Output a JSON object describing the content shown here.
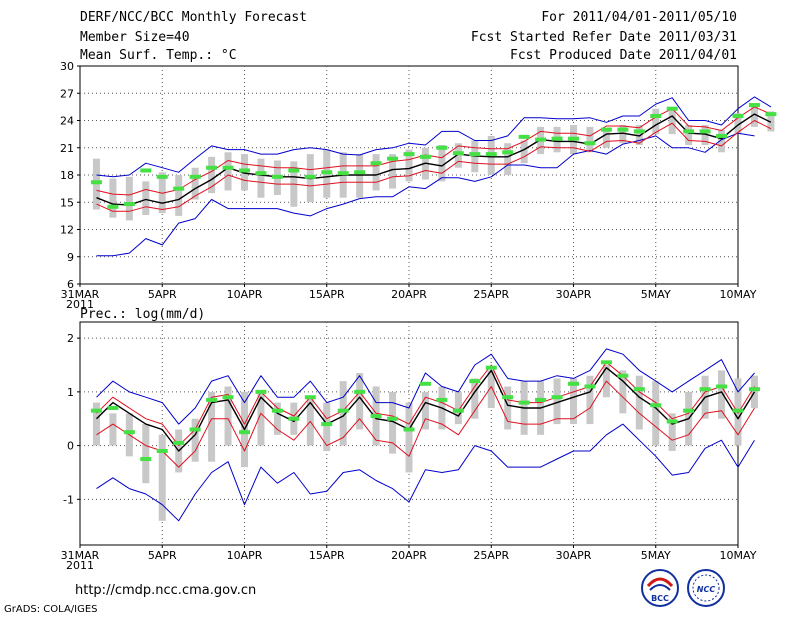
{
  "header": {
    "title": "DERF/NCC/BCC Monthly Forecast",
    "member_size": "Member Size=40",
    "variable": "Mean Surf. Temp.: °C",
    "period": "For 2011/04/01-2011/05/10",
    "fcst_started": "Fcst Started Refer Date 2011/03/31",
    "fcst_produced": "Fcst Produced Date 2011/04/01"
  },
  "footer": {
    "url": "http://cmdp.ncc.cma.gov.cn",
    "grads": "GrADS: COLA/IGES",
    "logo_left_label": "BCC",
    "logo_right_label": "NCC"
  },
  "colors": {
    "bar": "#c8c8c8",
    "mean": "#000000",
    "inner_envelope": "#e01020",
    "outer_envelope": "#0000cc",
    "observed_marker": "#44e044"
  },
  "chart_data": [
    {
      "type": "line",
      "name": "temperature",
      "title": "Mean Surf. Temp.: °C",
      "x_start": "2011-03-31",
      "n_days": 41,
      "xlabel_ticks": [
        {
          "day": 0,
          "label": "31MAR"
        },
        {
          "day": 5,
          "label": "5APR"
        },
        {
          "day": 10,
          "label": "10APR"
        },
        {
          "day": 15,
          "label": "15APR"
        },
        {
          "day": 20,
          "label": "20APR"
        },
        {
          "day": 25,
          "label": "25APR"
        },
        {
          "day": 30,
          "label": "30APR"
        },
        {
          "day": 35,
          "label": "5MAY"
        },
        {
          "day": 40,
          "label": "10MAY"
        }
      ],
      "year_label": "2011",
      "ylim": [
        6,
        30
      ],
      "yticks": [
        6,
        9,
        12,
        15,
        18,
        21,
        24,
        27,
        30
      ],
      "grid": true,
      "series": [
        {
          "name": "mean",
          "start_day": 1,
          "values": [
            15.5,
            14.8,
            14.7,
            15.3,
            14.9,
            15.3,
            16.5,
            17.5,
            18.8,
            18.2,
            18.0,
            17.8,
            17.8,
            17.6,
            17.8,
            18.0,
            18.0,
            18.0,
            18.6,
            18.7,
            19.3,
            19.0,
            20.3,
            20.1,
            20.0,
            20.0,
            20.8,
            21.9,
            21.7,
            21.7,
            21.4,
            22.5,
            22.6,
            22.3,
            23.5,
            24.5,
            22.6,
            22.5,
            22.0,
            23.5,
            24.7,
            23.8
          ]
        },
        {
          "name": "upper",
          "start_day": 1,
          "values": [
            16.3,
            15.9,
            15.8,
            16.4,
            16.0,
            16.4,
            17.5,
            18.4,
            19.6,
            19.2,
            19.0,
            18.8,
            18.8,
            18.6,
            18.8,
            19.0,
            19.0,
            19.0,
            19.5,
            19.7,
            20.2,
            19.9,
            21.2,
            21.0,
            20.9,
            20.9,
            21.7,
            22.8,
            22.6,
            22.6,
            22.3,
            23.4,
            23.4,
            23.2,
            24.4,
            25.3,
            23.4,
            23.3,
            22.9,
            24.3,
            25.5,
            24.7
          ]
        },
        {
          "name": "lower",
          "start_day": 1,
          "values": [
            14.8,
            14.0,
            14.0,
            14.5,
            14.2,
            14.5,
            15.7,
            16.7,
            18.0,
            17.4,
            17.2,
            17.0,
            17.0,
            16.8,
            17.0,
            17.2,
            17.2,
            17.2,
            17.8,
            17.9,
            18.5,
            18.2,
            19.5,
            19.3,
            19.2,
            19.2,
            20.0,
            21.1,
            21.0,
            21.0,
            20.6,
            21.7,
            21.8,
            21.5,
            22.7,
            23.7,
            21.8,
            21.7,
            21.2,
            22.7,
            24.0,
            23.1
          ]
        },
        {
          "name": "max",
          "start_day": 1,
          "values": [
            18.0,
            17.8,
            18.0,
            19.3,
            18.8,
            18.3,
            19.8,
            21.2,
            20.8,
            20.8,
            20.3,
            20.3,
            20.8,
            21.0,
            20.8,
            20.3,
            20.2,
            20.8,
            21.0,
            21.5,
            21.3,
            22.8,
            22.8,
            21.8,
            21.8,
            22.3,
            24.3,
            24.3,
            24.2,
            24.2,
            24.3,
            23.8,
            24.5,
            24.5,
            25.8,
            26.5,
            24.0,
            24.0,
            23.5,
            25.3,
            26.6,
            25.5
          ]
        },
        {
          "name": "min",
          "start_day": 1,
          "values": [
            9.1,
            9.1,
            9.4,
            11.0,
            10.3,
            12.7,
            13.2,
            15.3,
            14.3,
            14.3,
            14.3,
            14.3,
            13.8,
            13.5,
            14.3,
            14.8,
            15.4,
            15.6,
            15.6,
            16.7,
            16.5,
            17.7,
            17.7,
            17.3,
            17.8,
            19.1,
            19.1,
            18.8,
            18.8,
            20.3,
            20.7,
            20.3,
            21.4,
            21.8,
            22.3,
            21.0,
            21.0,
            20.5,
            21.9,
            22.6,
            22.3
          ]
        },
        {
          "name": "observed",
          "start_day": 1,
          "values": [
            17.2,
            14.5,
            14.8,
            18.5,
            17.8,
            16.5,
            17.8,
            18.8,
            18.8,
            18.5,
            18.2,
            17.8,
            18.5,
            17.8,
            18.3,
            18.2,
            18.3,
            19.3,
            19.8,
            20.3,
            20.0,
            21.0,
            20.4,
            20.3,
            20.3,
            20.5,
            22.2,
            21.9,
            22.0,
            22.0,
            21.5,
            23.0,
            23.0,
            22.8,
            24.5,
            25.3,
            22.8,
            22.8,
            22.3,
            24.5,
            25.7,
            24.7
          ]
        },
        {
          "name": "box_high",
          "start_day": 1,
          "values": [
            19.8,
            17.6,
            17.8,
            17.3,
            18.3,
            18.0,
            18.8,
            20.0,
            20.5,
            20.3,
            19.8,
            19.6,
            19.5,
            20.3,
            20.8,
            20.5,
            20.3,
            20.3,
            20.3,
            20.8,
            21.0,
            21.3,
            21.5,
            21.8,
            22.3,
            21.5,
            21.8,
            23.3,
            23.3,
            23.5,
            23.3,
            22.8,
            23.5,
            23.5,
            25.3,
            25.5,
            23.5,
            23.5,
            23.0,
            24.8,
            25.8,
            25.0
          ]
        },
        {
          "name": "box_low",
          "start_day": 1,
          "values": [
            14.2,
            13.3,
            13.0,
            13.6,
            13.8,
            13.5,
            15.3,
            16.0,
            16.3,
            16.3,
            15.5,
            15.8,
            14.5,
            15.0,
            15.5,
            15.5,
            15.5,
            16.3,
            16.5,
            17.3,
            17.5,
            17.3,
            18.8,
            18.3,
            18.0,
            18.0,
            19.3,
            20.3,
            20.5,
            20.3,
            20.5,
            21.0,
            21.5,
            21.3,
            22.5,
            22.5,
            21.3,
            21.3,
            20.5,
            22.5,
            23.3,
            22.8
          ]
        }
      ]
    },
    {
      "type": "line",
      "name": "precipitation",
      "title": "Prec.: log(mm/d)",
      "x_start": "2011-03-31",
      "n_days": 41,
      "xlabel_ticks": [
        {
          "day": 0,
          "label": "31MAR"
        },
        {
          "day": 5,
          "label": "5APR"
        },
        {
          "day": 10,
          "label": "10APR"
        },
        {
          "day": 15,
          "label": "15APR"
        },
        {
          "day": 20,
          "label": "20APR"
        },
        {
          "day": 25,
          "label": "25APR"
        },
        {
          "day": 30,
          "label": "30APR"
        },
        {
          "day": 35,
          "label": "5MAY"
        },
        {
          "day": 40,
          "label": "10MAY"
        }
      ],
      "year_label": "2011",
      "ylim": [
        -1.85,
        2.3
      ],
      "yticks": [
        -1,
        0,
        1,
        2
      ],
      "grid": true,
      "series": [
        {
          "name": "mean",
          "start_day": 1,
          "values": [
            0.5,
            0.8,
            0.6,
            0.4,
            0.3,
            -0.1,
            0.2,
            0.8,
            0.85,
            0.3,
            0.9,
            0.6,
            0.45,
            0.8,
            0.4,
            0.55,
            0.9,
            0.5,
            0.45,
            0.3,
            0.8,
            0.7,
            0.55,
            1.0,
            1.4,
            0.75,
            0.7,
            0.7,
            0.8,
            0.9,
            1.0,
            1.45,
            1.2,
            0.9,
            0.7,
            0.4,
            0.5,
            0.9,
            1.0,
            0.5,
            1.0
          ]
        },
        {
          "name": "upper",
          "start_day": 1,
          "values": [
            0.6,
            0.9,
            0.7,
            0.5,
            0.4,
            0.0,
            0.3,
            0.9,
            0.95,
            0.4,
            1.0,
            0.7,
            0.55,
            0.9,
            0.5,
            0.65,
            1.0,
            0.6,
            0.55,
            0.4,
            0.9,
            0.8,
            0.65,
            1.1,
            1.5,
            0.85,
            0.8,
            0.8,
            0.9,
            1.0,
            1.1,
            1.55,
            1.3,
            1.0,
            0.8,
            0.5,
            0.6,
            1.0,
            1.1,
            0.6,
            1.1
          ]
        },
        {
          "name": "lower",
          "start_day": 1,
          "values": [
            0.2,
            0.4,
            0.2,
            0.0,
            -0.1,
            -0.4,
            -0.1,
            0.5,
            0.5,
            -0.1,
            0.6,
            0.3,
            0.1,
            0.45,
            0.0,
            0.15,
            0.5,
            0.1,
            0.05,
            -0.2,
            0.5,
            0.4,
            0.2,
            0.65,
            1.1,
            0.45,
            0.4,
            0.4,
            0.5,
            0.5,
            0.7,
            1.2,
            0.9,
            0.6,
            0.35,
            0.1,
            0.2,
            0.6,
            0.65,
            0.2,
            0.7
          ]
        },
        {
          "name": "max",
          "start_day": 1,
          "values": [
            0.9,
            1.2,
            1.0,
            0.9,
            0.8,
            0.4,
            0.7,
            1.2,
            1.3,
            0.8,
            1.3,
            0.9,
            0.9,
            1.2,
            0.8,
            0.9,
            1.3,
            0.8,
            0.8,
            0.7,
            1.35,
            1.1,
            1.0,
            1.5,
            1.7,
            1.25,
            1.2,
            1.2,
            1.3,
            1.25,
            1.4,
            1.8,
            1.7,
            1.4,
            1.2,
            1.0,
            1.2,
            1.4,
            1.6,
            1.0,
            1.35
          ]
        },
        {
          "name": "min",
          "start_day": 1,
          "values": [
            -0.8,
            -0.6,
            -0.8,
            -0.9,
            -1.1,
            -1.4,
            -0.9,
            -0.5,
            -0.3,
            -1.1,
            -0.4,
            -0.7,
            -0.5,
            -0.9,
            -0.85,
            -0.5,
            -0.45,
            -0.65,
            -0.8,
            -1.05,
            -0.45,
            -0.5,
            -0.45,
            0.0,
            -0.1,
            -0.4,
            -0.4,
            -0.4,
            -0.25,
            -0.1,
            -0.1,
            0.2,
            0.4,
            0.1,
            -0.2,
            -0.55,
            -0.5,
            -0.05,
            0.1,
            -0.4,
            0.1
          ]
        },
        {
          "name": "observed",
          "start_day": 1,
          "values": [
            0.65,
            0.7,
            0.25,
            -0.25,
            -0.1,
            0.05,
            0.3,
            0.85,
            0.9,
            0.25,
            1.0,
            0.65,
            0.5,
            0.9,
            0.4,
            0.65,
            1.0,
            0.55,
            0.5,
            0.3,
            1.15,
            0.85,
            0.65,
            1.2,
            1.45,
            0.9,
            0.8,
            0.85,
            0.9,
            1.15,
            1.1,
            1.55,
            1.3,
            1.05,
            0.75,
            0.45,
            0.65,
            1.05,
            1.1,
            0.65,
            1.05
          ]
        },
        {
          "name": "box_high",
          "start_day": 1,
          "values": [
            0.8,
            0.6,
            0.6,
            0.4,
            0.2,
            0.3,
            0.5,
            1.0,
            1.1,
            1.0,
            1.0,
            0.8,
            0.8,
            0.9,
            0.8,
            1.2,
            1.35,
            1.1,
            1.0,
            0.8,
            1.0,
            1.1,
            1.0,
            1.25,
            1.4,
            1.1,
            1.2,
            1.2,
            1.25,
            1.25,
            1.3,
            1.5,
            1.4,
            1.3,
            1.2,
            0.6,
            1.0,
            1.3,
            1.4,
            1.25,
            1.3
          ]
        },
        {
          "name": "box_low",
          "start_day": 1,
          "values": [
            0.0,
            0.0,
            -0.2,
            -0.7,
            -1.4,
            -0.5,
            -0.3,
            -0.3,
            0.0,
            -0.4,
            0.0,
            0.2,
            0.2,
            0.0,
            -0.1,
            0.0,
            0.3,
            0.0,
            -0.15,
            -0.5,
            0.3,
            0.3,
            0.4,
            0.5,
            0.7,
            0.3,
            0.2,
            0.2,
            0.4,
            0.4,
            0.4,
            0.9,
            0.6,
            0.3,
            0.0,
            -0.1,
            0.0,
            0.5,
            0.5,
            0.0,
            0.7
          ]
        }
      ]
    }
  ]
}
